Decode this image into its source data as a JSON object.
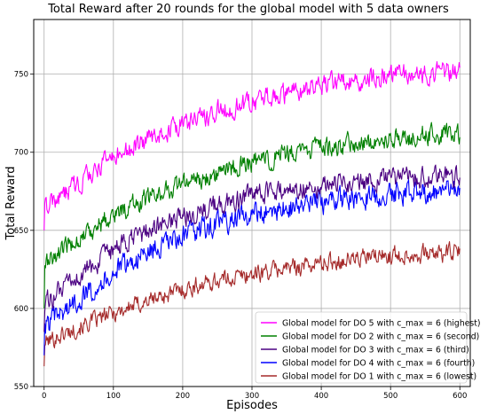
{
  "chart_data": {
    "type": "line",
    "title": "Total Reward after 20 rounds for the global model with 5 data owners",
    "xlabel": "Episodes",
    "ylabel": "Total Reward",
    "xlim": [
      -15,
      615
    ],
    "ylim": [
      550,
      785
    ],
    "xticks": [
      0,
      100,
      200,
      300,
      400,
      500,
      600
    ],
    "yticks": [
      550,
      600,
      650,
      700,
      750
    ],
    "grid": true,
    "legend_position": "lower-right",
    "x": {
      "start": 0,
      "end": 600,
      "step": 1
    },
    "series": [
      {
        "name": "Global model for DO 5 with c_max = 6 (highest)",
        "color": "#ff00ff",
        "trend": [
          [
            0,
            664
          ],
          [
            50,
            680
          ],
          [
            100,
            697
          ],
          [
            150,
            708
          ],
          [
            200,
            718
          ],
          [
            250,
            726
          ],
          [
            300,
            732
          ],
          [
            350,
            737
          ],
          [
            400,
            743
          ],
          [
            450,
            746
          ],
          [
            500,
            749
          ],
          [
            550,
            751
          ],
          [
            600,
            752
          ]
        ],
        "noise_amplitude": 8,
        "start_value": 650
      },
      {
        "name": "Global model for DO 2 with c_max = 6 (second)",
        "color": "#008000",
        "trend": [
          [
            0,
            628
          ],
          [
            50,
            645
          ],
          [
            100,
            660
          ],
          [
            150,
            671
          ],
          [
            200,
            680
          ],
          [
            250,
            687
          ],
          [
            300,
            693
          ],
          [
            350,
            698
          ],
          [
            400,
            703
          ],
          [
            450,
            706
          ],
          [
            500,
            709
          ],
          [
            550,
            711
          ],
          [
            600,
            712
          ]
        ],
        "noise_amplitude": 8,
        "start_value": 600
      },
      {
        "name": "Global model for DO 3 with c_max = 6 (third)",
        "color": "#4b0082",
        "trend": [
          [
            0,
            603
          ],
          [
            50,
            620
          ],
          [
            100,
            637
          ],
          [
            150,
            650
          ],
          [
            200,
            659
          ],
          [
            250,
            666
          ],
          [
            300,
            672
          ],
          [
            350,
            676
          ],
          [
            400,
            679
          ],
          [
            450,
            681
          ],
          [
            500,
            683
          ],
          [
            550,
            684
          ],
          [
            600,
            685
          ]
        ],
        "noise_amplitude": 8,
        "start_value": 585
      },
      {
        "name": "Global model for DO 4 with c_max = 6 (fourth)",
        "color": "#0000ff",
        "trend": [
          [
            0,
            588
          ],
          [
            50,
            606
          ],
          [
            100,
            623
          ],
          [
            150,
            636
          ],
          [
            200,
            646
          ],
          [
            250,
            654
          ],
          [
            300,
            660
          ],
          [
            350,
            664
          ],
          [
            400,
            668
          ],
          [
            450,
            671
          ],
          [
            500,
            673
          ],
          [
            550,
            675
          ],
          [
            600,
            676
          ]
        ],
        "noise_amplitude": 9,
        "start_value": 570
      },
      {
        "name": "Global model for DO 1 with c_max = 6 (lowest)",
        "color": "#a52a2a",
        "trend": [
          [
            0,
            578
          ],
          [
            50,
            588
          ],
          [
            100,
            597
          ],
          [
            150,
            605
          ],
          [
            200,
            612
          ],
          [
            250,
            618
          ],
          [
            300,
            622
          ],
          [
            350,
            626
          ],
          [
            400,
            629
          ],
          [
            450,
            632
          ],
          [
            500,
            634
          ],
          [
            550,
            635
          ],
          [
            600,
            636
          ]
        ],
        "noise_amplitude": 7,
        "start_value": 563
      }
    ]
  }
}
